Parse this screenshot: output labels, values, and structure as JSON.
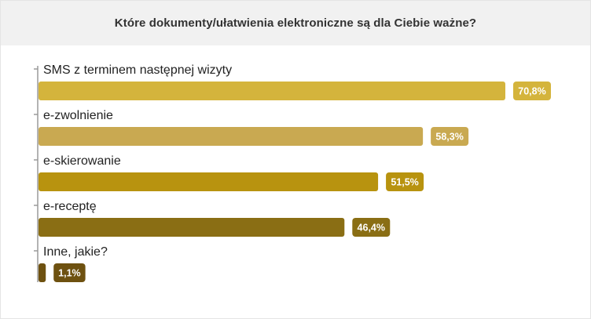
{
  "chart_data": {
    "type": "bar",
    "orientation": "horizontal",
    "title": "Które dokumenty/ułatwienia elektroniczne są dla Ciebie ważne?",
    "categories": [
      "SMS z terminem następnej wizyty",
      "e-zwolnienie",
      "e-skierowanie",
      "e-receptę",
      "Inne, jakie?"
    ],
    "values": [
      70.8,
      58.3,
      51.5,
      46.4,
      1.1
    ],
    "value_labels": [
      "70,8%",
      "58,3%",
      "51,5%",
      "46,4%",
      "1,1%"
    ],
    "unit": "%",
    "colors": [
      "#d4b43c",
      "#c9a951",
      "#b8930f",
      "#8a6e14",
      "#6e5110"
    ],
    "xlim": [
      0,
      100
    ],
    "grid": false,
    "legend": "none"
  }
}
